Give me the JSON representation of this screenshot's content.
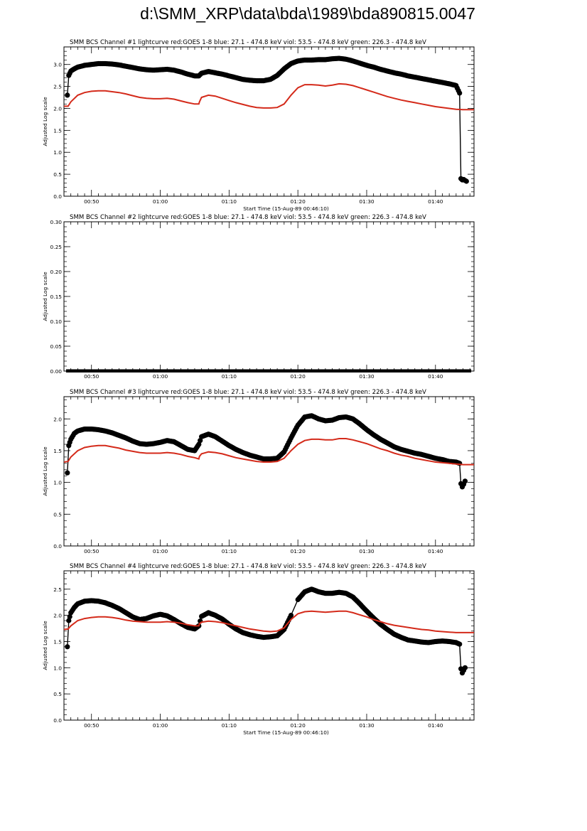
{
  "page": {
    "title": "d:\\SMM_XRP\\data\\bda\\1989\\bda890815.0047"
  },
  "colors": {
    "data": "#000000",
    "goes": "#d42a1a",
    "axis": "#000000"
  },
  "chart_data": [
    {
      "type": "line",
      "title": "SMM BCS Channel #1 lightcurve  red:GOES 1-8  blue: 27.1 - 474.8 keV  viol: 53.5 - 474.8 keV  green: 226.3 - 474.8 keV",
      "xlabel": "Start Time (15-Aug-89 00:46:10)",
      "ylabel": "Adjusted Log scale",
      "xlim": [
        0.0,
        59.6
      ],
      "ylim": [
        0.0,
        3.4
      ],
      "grid": false,
      "x_ticks": [
        4,
        14,
        24,
        34,
        44,
        54
      ],
      "x_tick_labels": [
        "00:50",
        "01:00",
        "01:10",
        "01:20",
        "01:30",
        "01:40"
      ],
      "y_ticks": [
        0.0,
        0.5,
        1.0,
        1.5,
        2.0,
        2.5,
        3.0
      ],
      "y_tick_labels": [
        "0.0",
        "0.5",
        "1.0",
        "1.5",
        "2.0",
        "2.5",
        "3.0"
      ],
      "series": [
        {
          "style": "markers",
          "color": "#000000",
          "x": [
            0.5,
            0.7,
            1.0,
            1.5,
            2,
            3,
            4,
            5,
            6,
            7,
            8,
            9,
            10,
            11,
            12,
            13,
            14,
            15,
            16,
            17,
            18,
            19,
            19.6,
            20,
            21,
            22,
            23,
            24,
            25,
            26,
            27,
            28,
            29,
            30,
            31,
            32,
            33,
            34,
            35,
            36,
            37,
            38,
            39,
            40,
            41,
            42,
            43,
            44,
            45,
            46,
            47,
            48,
            49,
            50,
            51,
            52,
            53,
            54,
            55,
            56,
            57,
            57.5,
            57.7,
            57.9,
            58.1,
            58.3,
            58.5
          ],
          "y": [
            2.3,
            2.75,
            2.85,
            2.9,
            2.94,
            2.98,
            3.0,
            3.02,
            3.02,
            3.01,
            2.99,
            2.96,
            2.93,
            2.9,
            2.88,
            2.87,
            2.88,
            2.89,
            2.87,
            2.83,
            2.78,
            2.74,
            2.74,
            2.8,
            2.84,
            2.81,
            2.78,
            2.74,
            2.7,
            2.66,
            2.64,
            2.63,
            2.63,
            2.66,
            2.75,
            2.9,
            3.02,
            3.08,
            3.1,
            3.1,
            3.11,
            3.11,
            3.13,
            3.14,
            3.12,
            3.08,
            3.03,
            2.98,
            2.94,
            2.89,
            2.85,
            2.81,
            2.78,
            2.74,
            2.71,
            2.68,
            2.65,
            2.62,
            2.59,
            2.56,
            2.52,
            2.35,
            0.4,
            0.37,
            0.38,
            0.36,
            0.34
          ]
        },
        {
          "style": "line",
          "color": "#d42a1a",
          "x": [
            0,
            0.6,
            1.0,
            2,
            3,
            4,
            5,
            6,
            7,
            8,
            9,
            10,
            11,
            12,
            13,
            14,
            15,
            16,
            17,
            18,
            19,
            19.6,
            19.7,
            20,
            21,
            22,
            23,
            24,
            25,
            26,
            27,
            28,
            29,
            30,
            31,
            32,
            33,
            34,
            35,
            36,
            37,
            38,
            39,
            40,
            41,
            42,
            43,
            44,
            45,
            46,
            47,
            48,
            49,
            50,
            51,
            52,
            53,
            54,
            55,
            56,
            57,
            58,
            59.6
          ],
          "y": [
            2.05,
            2.05,
            2.15,
            2.3,
            2.36,
            2.39,
            2.4,
            2.4,
            2.38,
            2.36,
            2.33,
            2.29,
            2.25,
            2.23,
            2.22,
            2.22,
            2.23,
            2.21,
            2.17,
            2.13,
            2.1,
            2.1,
            2.15,
            2.25,
            2.3,
            2.28,
            2.23,
            2.18,
            2.13,
            2.09,
            2.05,
            2.02,
            2.01,
            2.01,
            2.02,
            2.1,
            2.3,
            2.47,
            2.54,
            2.54,
            2.53,
            2.51,
            2.53,
            2.56,
            2.55,
            2.52,
            2.47,
            2.42,
            2.37,
            2.32,
            2.27,
            2.23,
            2.19,
            2.16,
            2.13,
            2.1,
            2.07,
            2.04,
            2.02,
            2.0,
            1.98,
            1.97,
            1.97
          ]
        }
      ]
    },
    {
      "type": "line",
      "title": "SMM BCS Channel #2 lightcurve  red:GOES 1-8  blue: 27.1 - 474.8 keV  viol: 53.5 - 474.8 keV  green: 226.3 - 474.8 keV",
      "xlabel": "",
      "ylabel": "Adjusted Log scale",
      "xlim": [
        0.0,
        59.6
      ],
      "ylim": [
        0.0,
        0.3
      ],
      "grid": false,
      "x_ticks": [
        4,
        14,
        24,
        34,
        44,
        54
      ],
      "x_tick_labels": [
        "00:50",
        "01:00",
        "01:10",
        "01:20",
        "01:30",
        "01:40"
      ],
      "y_ticks": [
        0.0,
        0.05,
        0.1,
        0.15,
        0.2,
        0.25,
        0.3
      ],
      "y_tick_labels": [
        "0.00",
        "0.05",
        "0.10",
        "0.15",
        "0.20",
        "0.25",
        "0.30"
      ],
      "series": [
        {
          "style": "thickline",
          "color": "#000000",
          "x": [
            0.3,
            59.2
          ],
          "y": [
            0.0,
            0.0
          ]
        }
      ]
    },
    {
      "type": "line",
      "title": "SMM BCS Channel #3 lightcurve  red:GOES 1-8  blue: 27.1 - 474.8 keV  viol: 53.5 - 474.8 keV  green: 226.3 - 474.8 keV",
      "xlabel": "",
      "ylabel": "Adjusted Log scale",
      "xlim": [
        0.0,
        59.6
      ],
      "ylim": [
        0.0,
        2.35
      ],
      "grid": false,
      "x_ticks": [
        4,
        14,
        24,
        34,
        44,
        54
      ],
      "x_tick_labels": [
        "00:50",
        "01:00",
        "01:10",
        "01:20",
        "01:30",
        "01:40"
      ],
      "y_ticks": [
        0.0,
        0.5,
        1.0,
        1.5,
        2.0
      ],
      "y_tick_labels": [
        "0.0",
        "0.5",
        "1.0",
        "1.5",
        "2.0"
      ],
      "series": [
        {
          "style": "markers",
          "color": "#000000",
          "x": [
            0.5,
            0.7,
            1.0,
            1.5,
            2,
            3,
            4,
            5,
            6,
            7,
            8,
            9,
            10,
            11,
            12,
            13,
            14,
            15,
            16,
            17,
            18,
            19,
            19.6,
            20,
            21,
            22,
            23,
            24,
            25,
            26,
            27,
            28,
            29,
            30,
            31,
            32,
            33,
            34,
            35,
            36,
            37,
            38,
            39,
            40,
            41,
            42,
            43,
            44,
            45,
            46,
            47,
            48,
            49,
            50,
            51,
            52,
            53,
            54,
            55,
            56,
            57,
            57.5,
            57.7,
            57.9,
            58.1,
            58.3
          ],
          "y": [
            1.15,
            1.58,
            1.68,
            1.77,
            1.81,
            1.84,
            1.84,
            1.83,
            1.81,
            1.78,
            1.74,
            1.7,
            1.65,
            1.61,
            1.6,
            1.61,
            1.63,
            1.66,
            1.64,
            1.58,
            1.52,
            1.5,
            1.6,
            1.72,
            1.76,
            1.72,
            1.65,
            1.58,
            1.52,
            1.47,
            1.43,
            1.4,
            1.37,
            1.37,
            1.38,
            1.48,
            1.7,
            1.9,
            2.03,
            2.05,
            2.0,
            1.97,
            1.98,
            2.02,
            2.03,
            2.0,
            1.92,
            1.83,
            1.75,
            1.68,
            1.62,
            1.56,
            1.52,
            1.49,
            1.46,
            1.44,
            1.41,
            1.38,
            1.36,
            1.33,
            1.32,
            1.3,
            0.98,
            0.93,
            0.97,
            1.02
          ]
        },
        {
          "style": "line",
          "color": "#d42a1a",
          "x": [
            0,
            0.6,
            1.0,
            2,
            3,
            4,
            5,
            6,
            7,
            8,
            9,
            10,
            11,
            12,
            13,
            14,
            15,
            16,
            17,
            18,
            19,
            19.6,
            19.7,
            20,
            21,
            22,
            23,
            24,
            25,
            26,
            27,
            28,
            29,
            30,
            31,
            32,
            33,
            34,
            35,
            36,
            37,
            38,
            39,
            40,
            41,
            42,
            43,
            44,
            45,
            46,
            47,
            48,
            49,
            50,
            51,
            52,
            53,
            54,
            55,
            56,
            57,
            58,
            59.6
          ],
          "y": [
            1.32,
            1.33,
            1.4,
            1.5,
            1.55,
            1.57,
            1.58,
            1.58,
            1.56,
            1.54,
            1.51,
            1.49,
            1.47,
            1.46,
            1.46,
            1.46,
            1.47,
            1.46,
            1.44,
            1.41,
            1.39,
            1.37,
            1.41,
            1.45,
            1.48,
            1.47,
            1.45,
            1.42,
            1.39,
            1.37,
            1.35,
            1.33,
            1.32,
            1.32,
            1.33,
            1.38,
            1.5,
            1.6,
            1.66,
            1.68,
            1.68,
            1.67,
            1.67,
            1.69,
            1.69,
            1.67,
            1.64,
            1.61,
            1.57,
            1.53,
            1.5,
            1.46,
            1.43,
            1.41,
            1.38,
            1.36,
            1.34,
            1.32,
            1.31,
            1.3,
            1.29,
            1.28,
            1.28
          ]
        }
      ]
    },
    {
      "type": "line",
      "title": "SMM BCS Channel #4 lightcurve  red:GOES 1-8  blue: 27.1 - 474.8 keV  viol: 53.5 - 474.8 keV  green: 226.3 - 474.8 keV",
      "xlabel": "Start Time (15-Aug-89 00:46:10)",
      "ylabel": "Adjusted Log scale",
      "xlim": [
        0.0,
        59.6
      ],
      "ylim": [
        0.0,
        2.85
      ],
      "grid": false,
      "x_ticks": [
        4,
        14,
        24,
        34,
        44,
        54
      ],
      "x_tick_labels": [
        "00:50",
        "01:00",
        "01:10",
        "01:20",
        "01:30",
        "01:40"
      ],
      "y_ticks": [
        0.0,
        0.5,
        1.0,
        1.5,
        2.0,
        2.5
      ],
      "y_tick_labels": [
        "0.0",
        "0.5",
        "1.0",
        "1.5",
        "2.0",
        "2.5"
      ],
      "series": [
        {
          "style": "markers",
          "color": "#000000",
          "x": [
            0.5,
            0.7,
            1.0,
            1.5,
            2,
            3,
            4,
            5,
            6,
            7,
            8,
            9,
            10,
            11,
            12,
            13,
            14,
            15,
            16,
            17,
            18,
            19,
            19.6,
            20,
            21,
            22,
            23,
            24,
            25,
            26,
            27,
            28,
            29,
            30,
            31,
            32,
            33,
            34,
            35,
            36,
            37,
            38,
            39,
            40,
            41,
            42,
            43,
            44,
            45,
            46,
            47,
            48,
            49,
            50,
            51,
            52,
            53,
            54,
            55,
            56,
            57,
            57.5,
            57.7,
            57.9,
            58.1,
            58.3
          ],
          "y": [
            1.4,
            1.9,
            2.05,
            2.15,
            2.22,
            2.27,
            2.28,
            2.27,
            2.24,
            2.19,
            2.13,
            2.05,
            1.97,
            1.92,
            1.94,
            1.99,
            2.02,
            1.99,
            1.92,
            1.84,
            1.77,
            1.74,
            1.8,
            1.98,
            2.05,
            2.0,
            1.93,
            1.83,
            1.74,
            1.67,
            1.63,
            1.6,
            1.58,
            1.59,
            1.61,
            1.73,
            2.0,
            2.3,
            2.45,
            2.5,
            2.45,
            2.42,
            2.42,
            2.44,
            2.42,
            2.35,
            2.22,
            2.08,
            1.95,
            1.83,
            1.73,
            1.64,
            1.58,
            1.53,
            1.51,
            1.49,
            1.48,
            1.5,
            1.51,
            1.5,
            1.48,
            1.45,
            0.98,
            0.9,
            0.95,
            1.0
          ]
        },
        {
          "style": "line",
          "color": "#d42a1a",
          "x": [
            0,
            0.6,
            1.0,
            2,
            3,
            4,
            5,
            6,
            7,
            8,
            9,
            10,
            11,
            12,
            13,
            14,
            15,
            16,
            17,
            18,
            19,
            19.6,
            19.7,
            20,
            21,
            22,
            23,
            24,
            25,
            26,
            27,
            28,
            29,
            30,
            31,
            32,
            33,
            34,
            35,
            36,
            37,
            38,
            39,
            40,
            41,
            42,
            43,
            44,
            45,
            46,
            47,
            48,
            49,
            50,
            51,
            52,
            53,
            54,
            55,
            56,
            57,
            58,
            59.6
          ],
          "y": [
            1.73,
            1.74,
            1.8,
            1.9,
            1.94,
            1.96,
            1.97,
            1.97,
            1.96,
            1.94,
            1.91,
            1.89,
            1.88,
            1.87,
            1.87,
            1.87,
            1.88,
            1.87,
            1.85,
            1.82,
            1.8,
            1.8,
            1.84,
            1.87,
            1.89,
            1.88,
            1.86,
            1.83,
            1.8,
            1.77,
            1.74,
            1.72,
            1.7,
            1.69,
            1.7,
            1.76,
            1.92,
            2.03,
            2.07,
            2.08,
            2.07,
            2.06,
            2.07,
            2.08,
            2.08,
            2.05,
            2.01,
            1.97,
            1.92,
            1.88,
            1.84,
            1.81,
            1.79,
            1.77,
            1.75,
            1.73,
            1.72,
            1.7,
            1.69,
            1.68,
            1.67,
            1.67,
            1.67
          ]
        }
      ]
    }
  ]
}
